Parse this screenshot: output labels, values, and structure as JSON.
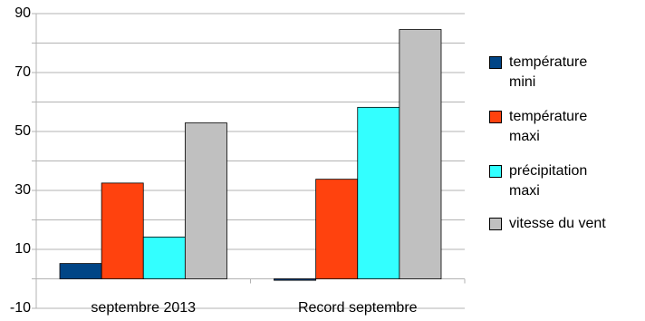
{
  "chart_data": {
    "type": "bar",
    "categories": [
      "septembre 2013",
      "Record septembre"
    ],
    "series": [
      {
        "name": "température mini",
        "color": "#004586",
        "values": [
          5.2,
          -0.5
        ]
      },
      {
        "name": "température maxi",
        "color": "#ff420e",
        "values": [
          32.5,
          33.8
        ]
      },
      {
        "name": "précipitation maxi",
        "color": "#33ffff",
        "values": [
          14.2,
          58.2
        ]
      },
      {
        "name": "vitesse du vent",
        "color": "#c0c0c0",
        "values": [
          52.9,
          84.6
        ]
      }
    ],
    "ylim": [
      -10,
      90
    ],
    "yticks": [
      -10,
      10,
      30,
      50,
      70,
      90
    ],
    "minor_yticks": [
      0,
      20,
      40,
      60,
      80
    ],
    "grid": true,
    "legend": "right"
  }
}
